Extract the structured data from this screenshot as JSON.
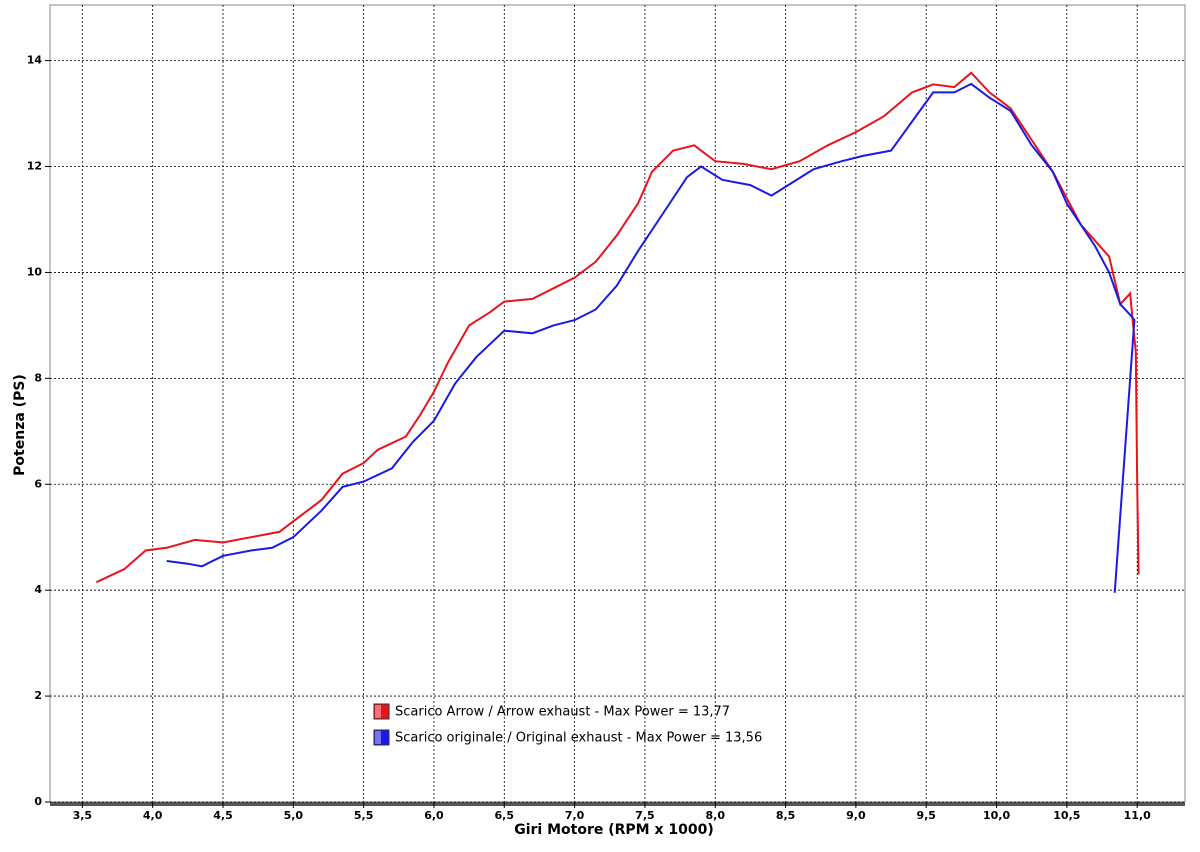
{
  "chart_data": {
    "type": "line",
    "x_label": "Giri Motore (RPM x 1000)",
    "y_label": "Potenza (PS)",
    "xlim": [
      3.27,
      11.34
    ],
    "ylim": [
      0,
      15.05
    ],
    "xticks": [
      {
        "value": 3.5,
        "label": "3,5"
      },
      {
        "value": 4.0,
        "label": "4,0"
      },
      {
        "value": 4.5,
        "label": "4,5"
      },
      {
        "value": 5.0,
        "label": "5,0"
      },
      {
        "value": 5.5,
        "label": "5,5"
      },
      {
        "value": 6.0,
        "label": "6,0"
      },
      {
        "value": 6.5,
        "label": "6,5"
      },
      {
        "value": 7.0,
        "label": "7,0"
      },
      {
        "value": 7.5,
        "label": "7,5"
      },
      {
        "value": 8.0,
        "label": "8,0"
      },
      {
        "value": 8.5,
        "label": "8,5"
      },
      {
        "value": 9.0,
        "label": "9,0"
      },
      {
        "value": 9.5,
        "label": "9,5"
      },
      {
        "value": 10.0,
        "label": "10,0"
      },
      {
        "value": 10.5,
        "label": "10,5"
      },
      {
        "value": 11.0,
        "label": "11,0"
      }
    ],
    "yticks": [
      0,
      2,
      4,
      6,
      8,
      10,
      12,
      14
    ],
    "grid": true,
    "series": [
      {
        "name": "Scarico Arrow / Arrow exhaust - Max Power = 13,77",
        "color": "#e8141c",
        "x": [
          3.6,
          3.8,
          3.95,
          4.1,
          4.3,
          4.5,
          4.7,
          4.9,
          5.0,
          5.2,
          5.35,
          5.5,
          5.6,
          5.8,
          5.9,
          6.0,
          6.1,
          6.25,
          6.4,
          6.5,
          6.7,
          6.85,
          7.0,
          7.15,
          7.3,
          7.45,
          7.55,
          7.7,
          7.85,
          8.0,
          8.2,
          8.4,
          8.6,
          8.8,
          9.0,
          9.2,
          9.4,
          9.55,
          9.7,
          9.82,
          9.95,
          10.1,
          10.25,
          10.4,
          10.5,
          10.6,
          10.7,
          10.8,
          10.88,
          10.95,
          10.99,
          11.0,
          11.01
        ],
        "values": [
          4.15,
          4.4,
          4.75,
          4.8,
          4.95,
          4.9,
          5.0,
          5.1,
          5.3,
          5.7,
          6.2,
          6.4,
          6.65,
          6.9,
          7.3,
          7.75,
          8.3,
          9.0,
          9.25,
          9.45,
          9.5,
          9.7,
          9.9,
          10.2,
          10.7,
          11.3,
          11.9,
          12.3,
          12.4,
          12.1,
          12.05,
          11.95,
          12.1,
          12.4,
          12.65,
          12.95,
          13.4,
          13.55,
          13.5,
          13.77,
          13.4,
          13.1,
          12.5,
          11.9,
          11.4,
          10.9,
          10.6,
          10.3,
          9.4,
          9.6,
          8.5,
          6.0,
          4.3
        ]
      },
      {
        "name": "Scarico originale / Original exhaust - Max Power = 13,56",
        "color": "#1a1ae6",
        "x": [
          4.1,
          4.25,
          4.35,
          4.5,
          4.7,
          4.85,
          5.0,
          5.2,
          5.35,
          5.5,
          5.7,
          5.85,
          6.0,
          6.15,
          6.3,
          6.5,
          6.7,
          6.85,
          7.0,
          7.15,
          7.3,
          7.45,
          7.6,
          7.8,
          7.9,
          8.05,
          8.25,
          8.4,
          8.55,
          8.7,
          8.9,
          9.05,
          9.25,
          9.4,
          9.55,
          9.7,
          9.82,
          9.95,
          10.1,
          10.25,
          10.4,
          10.5,
          10.6,
          10.7,
          10.8,
          10.88,
          10.95,
          10.98,
          10.84
        ],
        "values": [
          4.55,
          4.5,
          4.45,
          4.65,
          4.75,
          4.8,
          5.0,
          5.5,
          5.95,
          6.05,
          6.3,
          6.8,
          7.2,
          7.9,
          8.4,
          8.9,
          8.85,
          9.0,
          9.1,
          9.3,
          9.75,
          10.4,
          11.0,
          11.8,
          12.0,
          11.75,
          11.65,
          11.45,
          11.7,
          11.95,
          12.1,
          12.2,
          12.3,
          12.85,
          13.4,
          13.4,
          13.56,
          13.3,
          13.05,
          12.4,
          11.9,
          11.3,
          10.9,
          10.5,
          10.0,
          9.4,
          9.2,
          9.1,
          3.95
        ]
      }
    ]
  }
}
